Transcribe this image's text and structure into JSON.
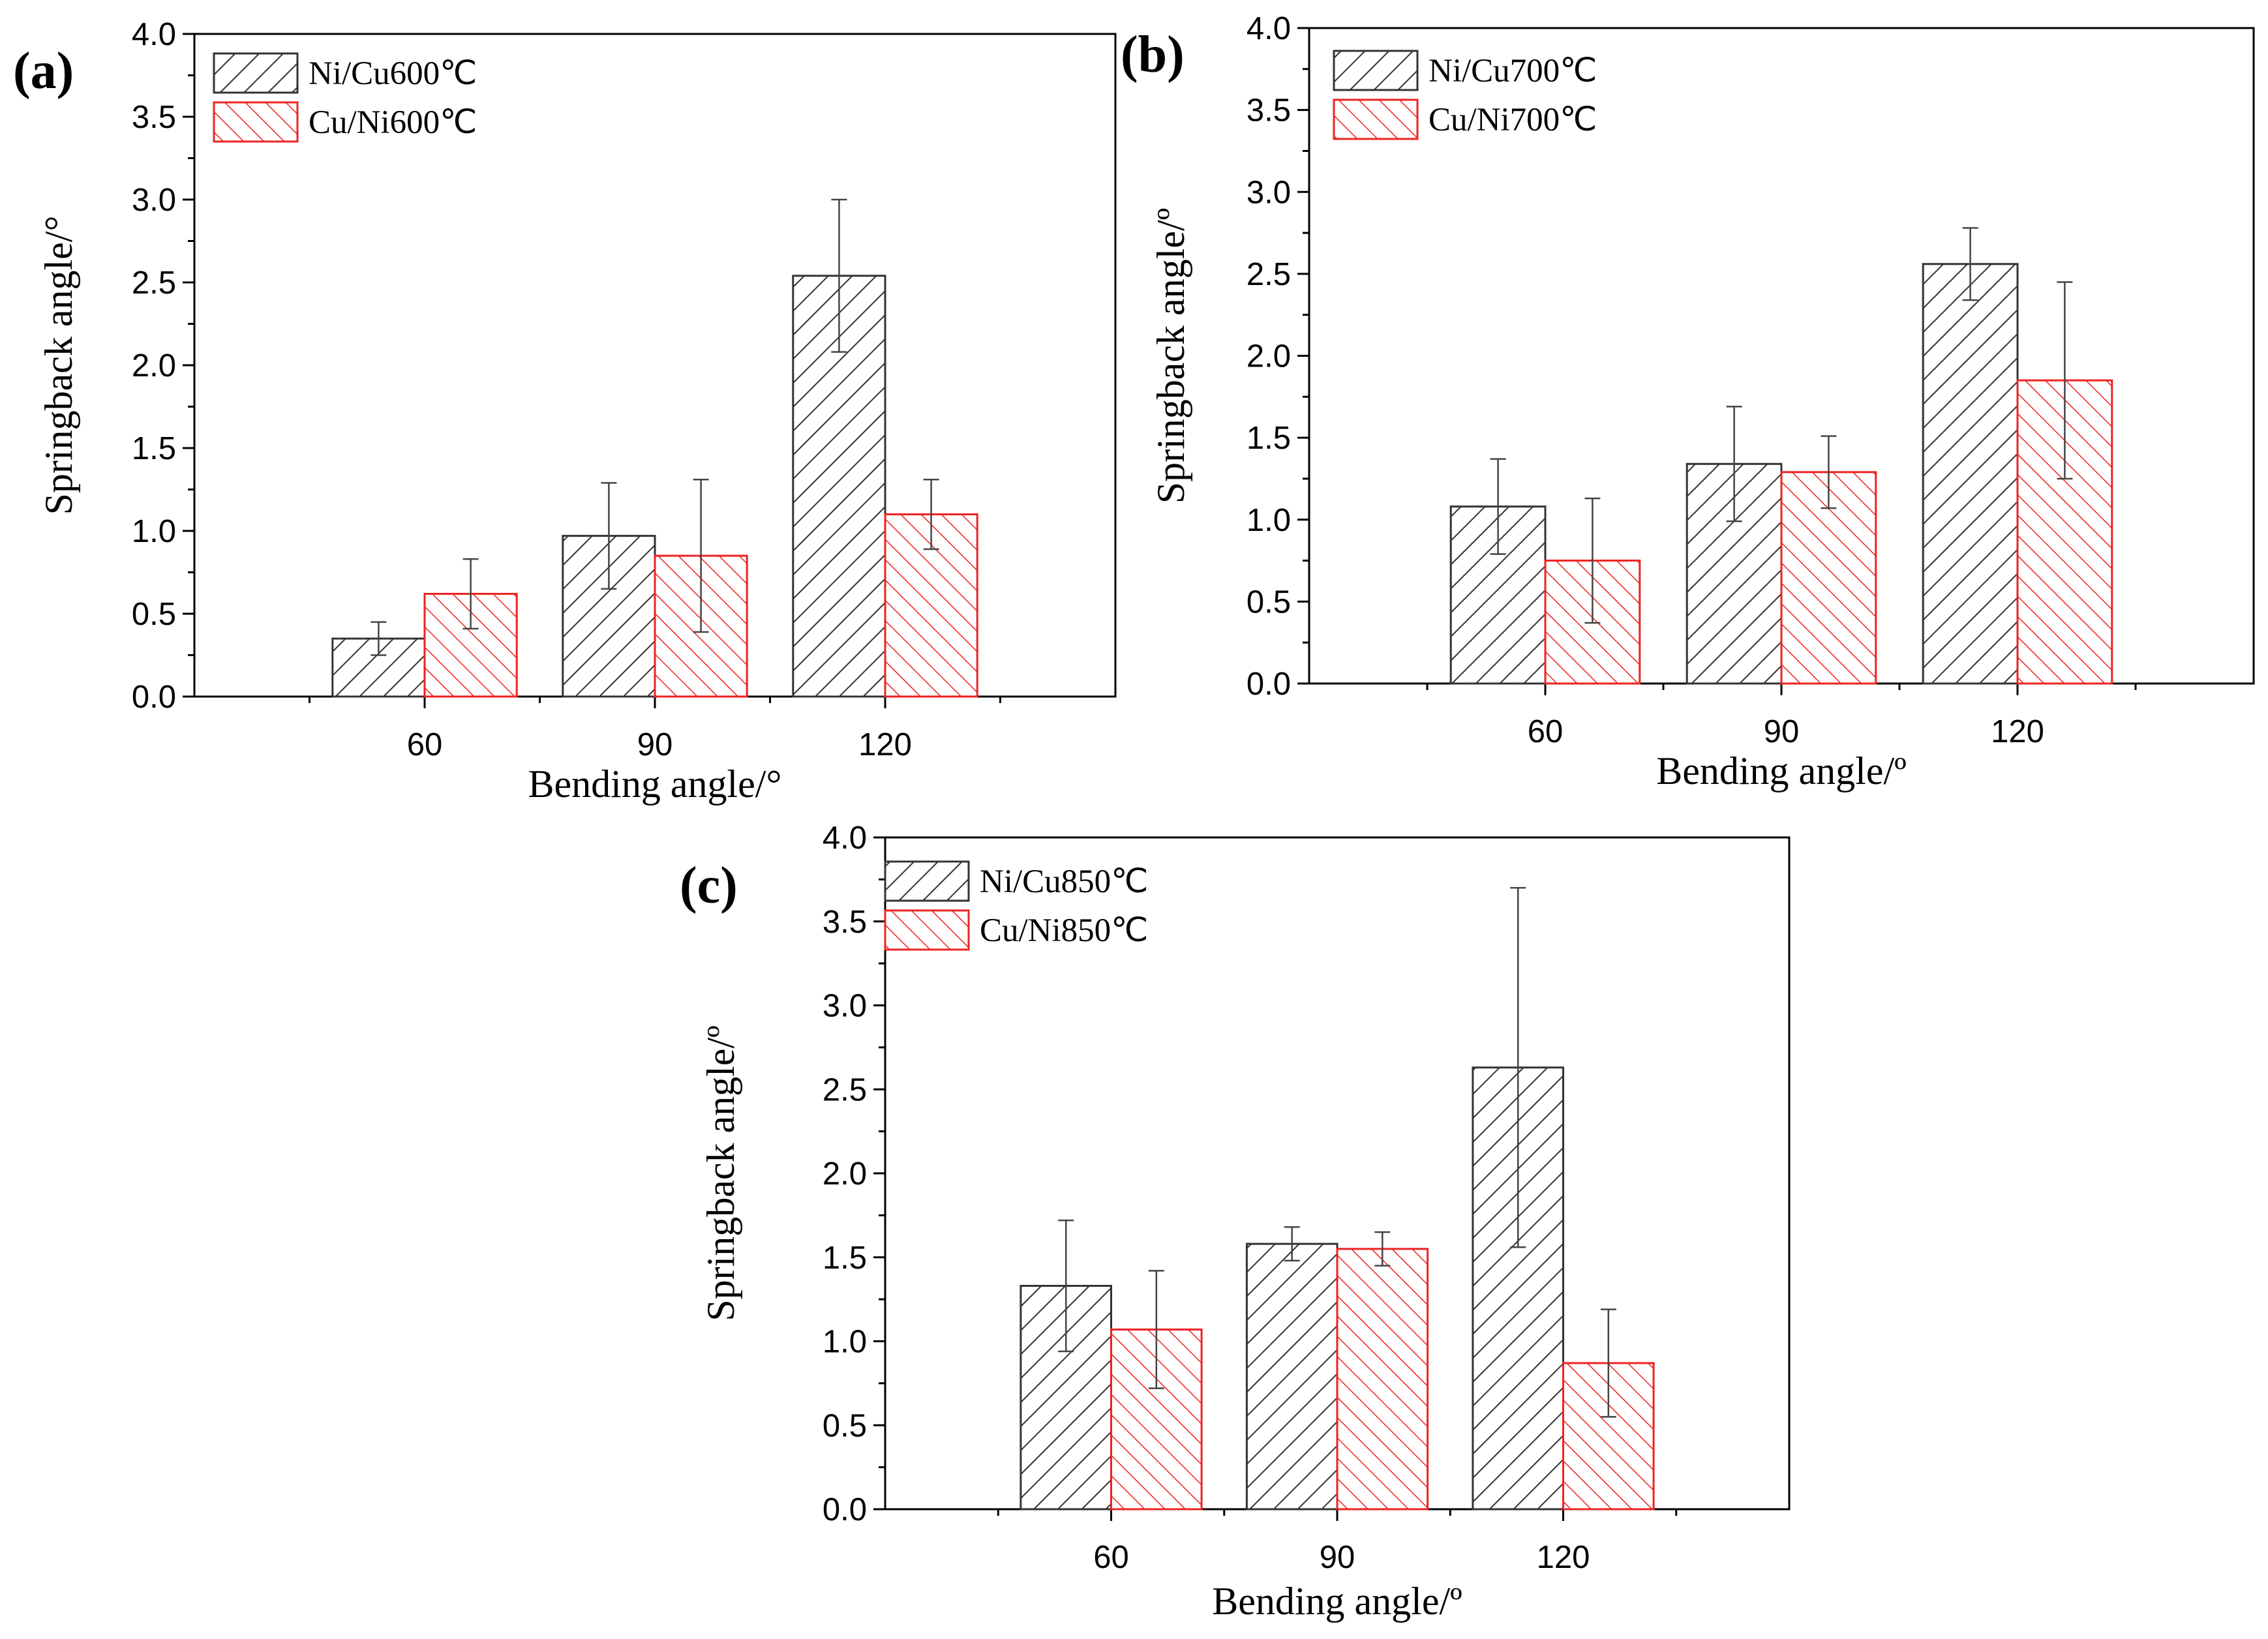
{
  "chart_data": [
    {
      "type": "bar",
      "panel_label": "(a)",
      "categories": [
        "60",
        "90",
        "120"
      ],
      "series": [
        {
          "name": "Ni/Cu600℃",
          "values": [
            0.35,
            0.97,
            2.54
          ],
          "errors": [
            0.1,
            0.32,
            0.46
          ],
          "color": "#333333"
        },
        {
          "name": "Cu/Ni600℃",
          "values": [
            0.62,
            0.85,
            1.1
          ],
          "errors": [
            0.21,
            0.46,
            0.21
          ],
          "color": "#ee2222"
        }
      ],
      "xlabel": "Bending angle/°",
      "ylabel": "Springback angle/°",
      "ylim": [
        0,
        4.0
      ],
      "yticks": [
        "0.0",
        "0.5",
        "1.0",
        "1.5",
        "2.0",
        "2.5",
        "3.0",
        "3.5",
        "4.0"
      ],
      "legend_position": "top-left"
    },
    {
      "type": "bar",
      "panel_label": "(b)",
      "categories": [
        "60",
        "90",
        "120"
      ],
      "series": [
        {
          "name": "Ni/Cu700℃",
          "values": [
            1.08,
            1.34,
            2.56
          ],
          "errors": [
            0.29,
            0.35,
            0.22
          ],
          "color": "#333333"
        },
        {
          "name": "Cu/Ni700℃",
          "values": [
            0.75,
            1.29,
            1.85
          ],
          "errors": [
            0.38,
            0.22,
            0.6
          ],
          "color": "#ee2222"
        }
      ],
      "xlabel": "Bending angle/º",
      "ylabel": "Springback angle/º",
      "ylim": [
        0,
        4.0
      ],
      "yticks": [
        "0.0",
        "0.5",
        "1.0",
        "1.5",
        "2.0",
        "2.5",
        "3.0",
        "3.5",
        "4.0"
      ],
      "legend_position": "top-left"
    },
    {
      "type": "bar",
      "panel_label": "(c)",
      "categories": [
        "60",
        "90",
        "120"
      ],
      "series": [
        {
          "name": "Ni/Cu850℃",
          "values": [
            1.33,
            1.58,
            2.63
          ],
          "errors": [
            0.39,
            0.1,
            1.07
          ],
          "color": "#333333"
        },
        {
          "name": "Cu/Ni850℃",
          "values": [
            1.07,
            1.55,
            0.87
          ],
          "errors": [
            0.35,
            0.1,
            0.32
          ],
          "color": "#ee2222"
        }
      ],
      "xlabel": "Bending angle/º",
      "ylabel": "Springback angle/º",
      "ylim": [
        0,
        4.0
      ],
      "yticks": [
        "0.0",
        "0.5",
        "1.0",
        "1.5",
        "2.0",
        "2.5",
        "3.0",
        "3.5",
        "4.0"
      ],
      "legend_position": "top-left"
    }
  ]
}
